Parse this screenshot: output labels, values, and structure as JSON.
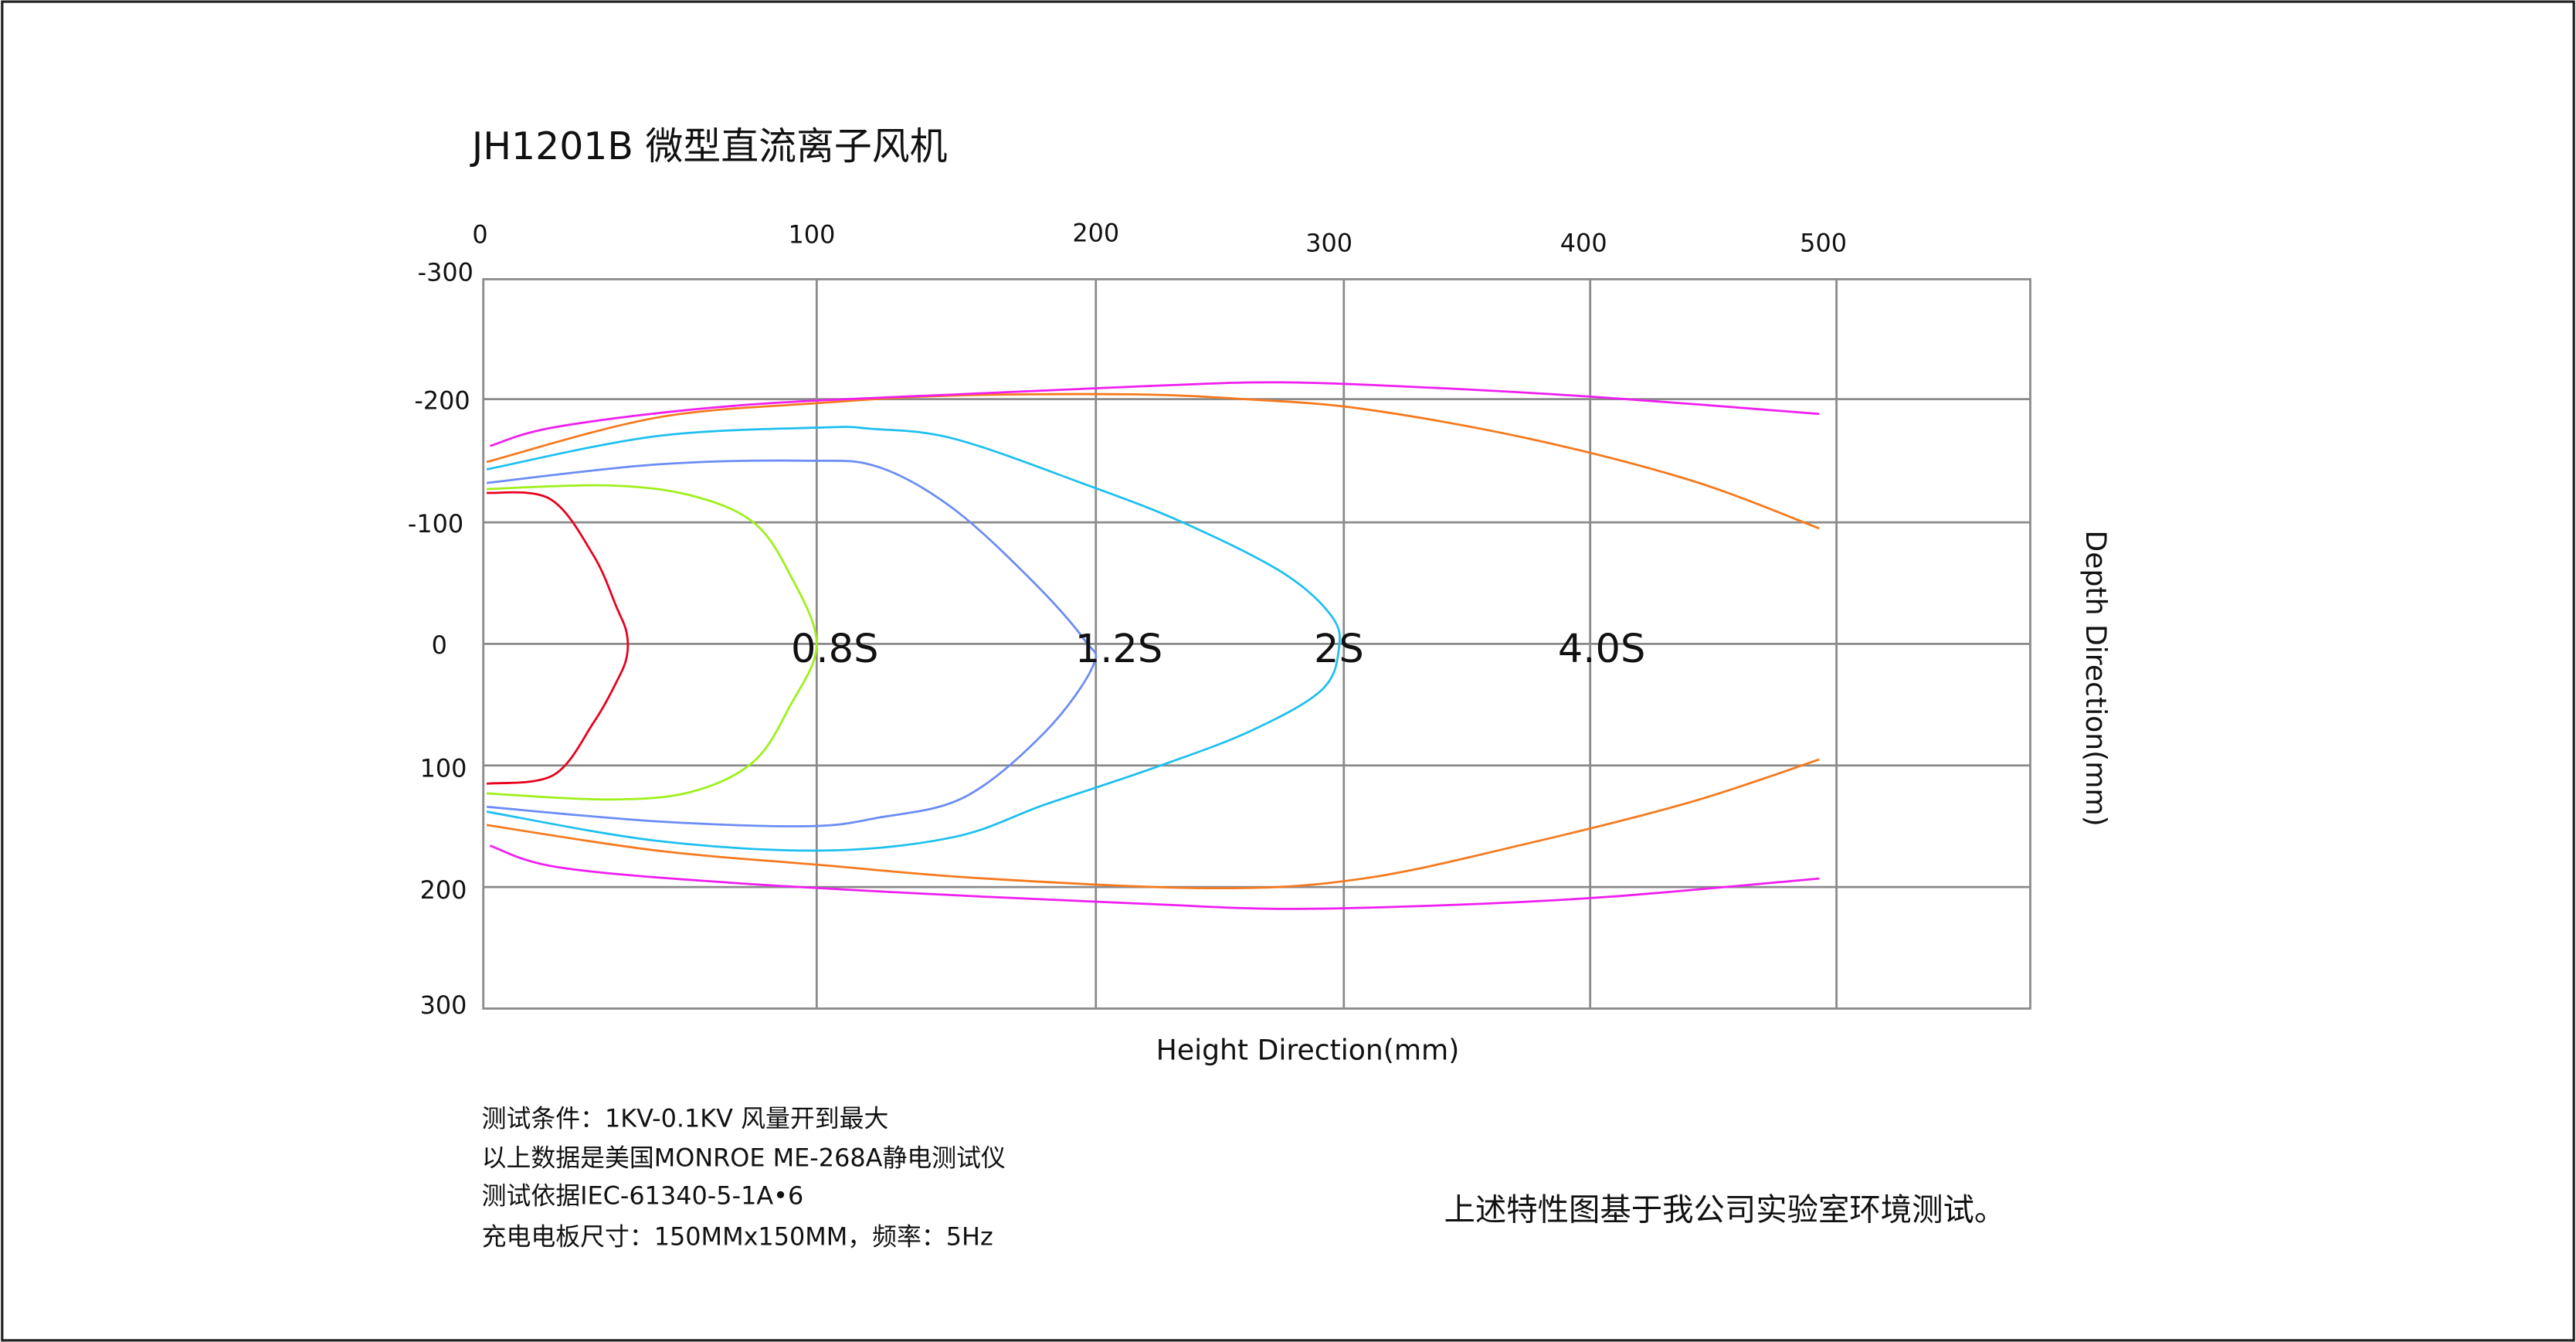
{
  "chart_data": {
    "type": "line",
    "title": "JH1201B 微型直流离子风机",
    "xlabel": "Height Direction(mm)",
    "ylabel": "Depth Direction(mm)",
    "x_ticks": [
      "0",
      "100",
      "200",
      "300",
      "400",
      "500"
    ],
    "y_ticks": [
      "-300",
      "-200",
      "-100",
      "0",
      "100",
      "200",
      "300"
    ],
    "xlim": [
      0,
      500
    ],
    "ylim": [
      -300,
      300
    ],
    "grid": true,
    "annotations": [
      "0.8S",
      "1.2S",
      "2S",
      "4.0S"
    ],
    "series": [
      {
        "color": "#e8001c",
        "segments": [
          [
            [
              1,
              -124
            ],
            [
              20,
              -119
            ],
            [
              33,
              -73
            ],
            [
              40,
              -30
            ],
            [
              43,
              -9
            ],
            [
              43,
              11
            ],
            [
              40,
              31
            ],
            [
              33,
              65
            ],
            [
              21,
              108
            ],
            [
              1,
              115
            ]
          ]
        ]
      },
      {
        "color": "#9ef01a",
        "segments": [
          [
            [
              1,
              -127
            ],
            [
              37,
              -130
            ],
            [
              62,
              -122
            ],
            [
              81,
              -100
            ],
            [
              92,
              -57
            ],
            [
              100,
              0
            ],
            [
              92,
              51
            ],
            [
              81,
              97
            ],
            [
              62,
              122
            ],
            [
              37,
              128
            ],
            [
              1,
              123
            ]
          ]
        ]
      },
      {
        "color": "#6b8cf5",
        "segments": [
          [
            [
              1,
              -132
            ],
            [
              52,
              -147
            ],
            [
              97,
              -150
            ],
            [
              122,
              -145
            ],
            [
              149,
              -111
            ],
            [
              178,
              -50
            ],
            [
              196,
              -3
            ],
            [
              199,
              18
            ],
            [
              182,
              72
            ],
            [
              153,
              126
            ],
            [
              122,
              143
            ],
            [
              97,
              150
            ],
            [
              52,
              146
            ],
            [
              1,
              134
            ]
          ]
        ]
      },
      {
        "color": "#1ec0f0",
        "segments": [
          [
            [
              1,
              -143
            ],
            [
              52,
              -170
            ],
            [
              102,
              -177
            ],
            [
              119,
              -176
            ],
            [
              149,
              -168
            ],
            [
              196,
              -131
            ],
            [
              235,
              -100
            ],
            [
              275,
              -59
            ],
            [
              295,
              -23
            ],
            [
              298,
              4
            ],
            [
              291,
              38
            ],
            [
              262,
              72
            ],
            [
              222,
              103
            ],
            [
              182,
              132
            ],
            [
              149,
              159
            ],
            [
              102,
              170
            ],
            [
              52,
              162
            ],
            [
              1,
              138
            ]
          ]
        ]
      },
      {
        "color": "#f57a1e",
        "segments": [
          [
            [
              1,
              -149
            ],
            [
              52,
              -185
            ],
            [
              102,
              -197
            ],
            [
              149,
              -203
            ],
            [
              214,
              -204
            ],
            [
              260,
              -200
            ],
            [
              308,
              -192
            ],
            [
              375,
              -168
            ],
            [
              441,
              -134
            ],
            [
              493,
              -95
            ]
          ],
          [
            [
              493,
              95
            ],
            [
              441,
              130
            ],
            [
              375,
              164
            ],
            [
              308,
              193
            ],
            [
              248,
              201
            ],
            [
              160,
              193
            ],
            [
              102,
              182
            ],
            [
              52,
              170
            ],
            [
              1,
              149
            ]
          ]
        ]
      },
      {
        "color": "#f01ef0",
        "segments": [
          [
            [
              2,
              -162
            ],
            [
              23,
              -178
            ],
            [
              77,
              -195
            ],
            [
              160,
              -205
            ],
            [
              222,
              -211
            ],
            [
              275,
              -214
            ],
            [
              341,
              -209
            ],
            [
              408,
              -201
            ],
            [
              493,
              -188
            ]
          ],
          [
            [
              493,
              193
            ],
            [
              408,
              208
            ],
            [
              341,
              215
            ],
            [
              275,
              218
            ],
            [
              222,
              214
            ],
            [
              160,
              208
            ],
            [
              77,
              197
            ],
            [
              23,
              184
            ],
            [
              2,
              166
            ]
          ]
        ]
      }
    ]
  },
  "notes": [
    "测试条件：1KV-0.1KV  风量开到最大",
    "以上数据是美国MONROE ME-268A静电测试仪",
    "测试依据IEC-61340-5-1A•6",
    "充电电板尺寸：150MMx150MM，频率：5Hz"
  ],
  "footer_note": "上述特性图基于我公司实验室环境测试。"
}
